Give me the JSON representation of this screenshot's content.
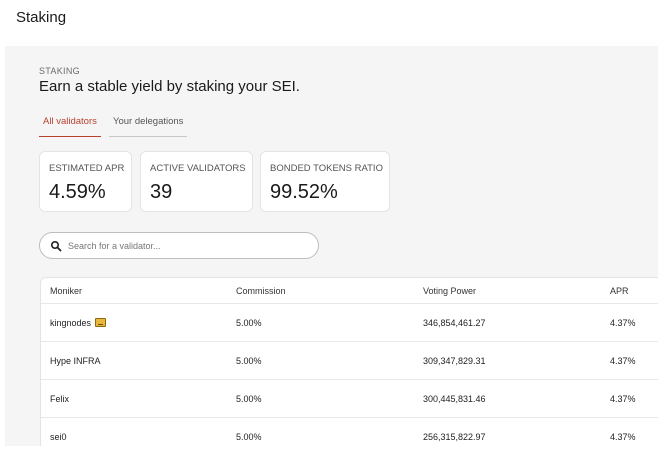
{
  "page": {
    "title": "Staking"
  },
  "intro": {
    "eyebrow": "STAKING",
    "headline": "Earn a stable yield by staking your SEI."
  },
  "tabs": [
    {
      "label": "All validators",
      "active": true
    },
    {
      "label": "Your delegations",
      "active": false
    }
  ],
  "stats": [
    {
      "label": "ESTIMATED APR",
      "value": "4.59%"
    },
    {
      "label": "ACTIVE VALIDATORS",
      "value": "39"
    },
    {
      "label": "BONDED TOKENS RATIO",
      "value": "99.52%"
    }
  ],
  "search": {
    "placeholder": "Search for a validator..."
  },
  "table": {
    "columns": [
      "Moniker",
      "Commission",
      "Voting Power",
      "APR"
    ],
    "rows": [
      {
        "moniker": "kingnodes",
        "commission": "5.00%",
        "voting_power": "346,854,461.27",
        "apr": "4.37%",
        "icon": "crown-badge-icon"
      },
      {
        "moniker": "Hype INFRA",
        "commission": "5.00%",
        "voting_power": "309,347,829.31",
        "apr": "4.37%"
      },
      {
        "moniker": "Felix",
        "commission": "5.00%",
        "voting_power": "300,445,831.46",
        "apr": "4.37%"
      },
      {
        "moniker": "sei0",
        "commission": "5.00%",
        "voting_power": "256,315,822.97",
        "apr": "4.37%"
      }
    ]
  },
  "colors": {
    "accent": "#b8412e",
    "panel_bg": "#f5f5f6",
    "card_bg": "#ffffff"
  }
}
